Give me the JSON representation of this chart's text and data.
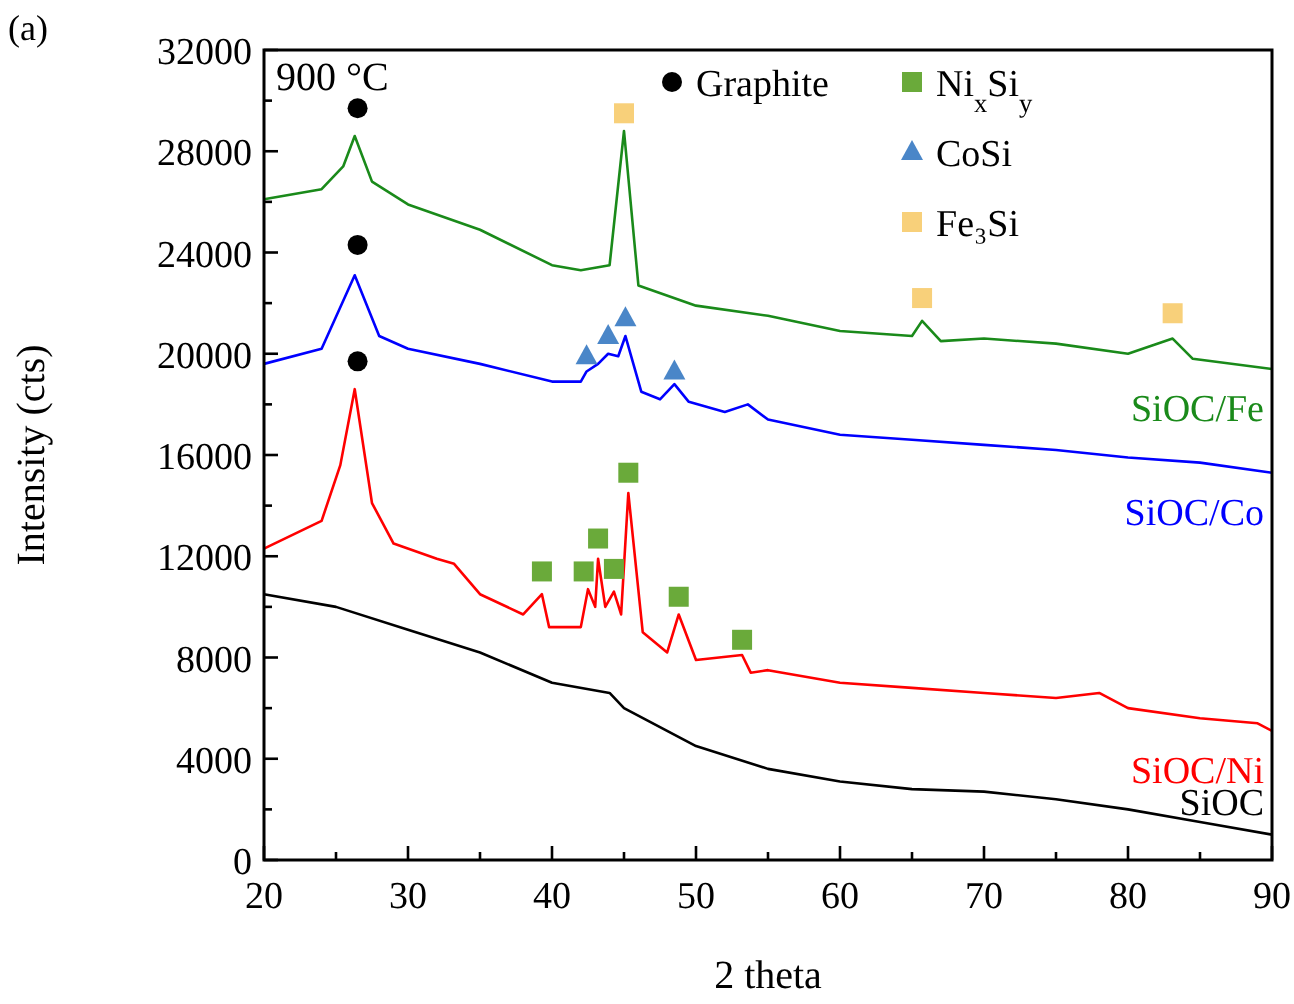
{
  "chart_data": {
    "type": "line",
    "xlabel": "2 theta",
    "ylabel": "Intensity (cts)",
    "annotations": [
      "(a)",
      "900 °C"
    ],
    "xlim": [
      20,
      90
    ],
    "xticks": [
      20,
      {
        "value": 25,
        "label": null
      },
      30,
      {
        "value": 35,
        "label": null
      },
      40,
      {
        "value": 45,
        "label": null
      },
      50,
      {
        "value": 55,
        "label": null
      },
      60,
      {
        "value": 65,
        "label": null
      },
      70,
      {
        "value": 75,
        "label": null
      },
      80,
      {
        "value": 85,
        "label": null
      },
      90
    ],
    "ylim": [
      0,
      32000
    ],
    "yticks": [
      0,
      {
        "value": 2000,
        "label": null
      },
      4000,
      {
        "value": 6000,
        "label": null
      },
      8000,
      {
        "value": 10000,
        "label": null
      },
      12000,
      {
        "value": 14000,
        "label": null
      },
      16000,
      {
        "value": 18000,
        "label": null
      },
      20000,
      {
        "value": 22000,
        "label": null
      },
      24000,
      {
        "value": 26000,
        "label": null
      },
      28000,
      {
        "value": 30000,
        "label": null
      },
      32000
    ],
    "grid": false,
    "legend": "top right",
    "line_style": "solid",
    "series": [
      {
        "name": "SiOC/Fe",
        "color": "#1a8a1a",
        "marker": "none",
        "x": [
          20,
          24,
          25.5,
          26.3,
          27.5,
          30,
          35,
          40,
          42,
          44,
          45,
          46,
          50,
          55,
          60,
          65,
          65.7,
          67,
          70,
          75,
          80,
          83.1,
          84.5,
          90
        ],
        "values": [
          26100,
          26500,
          27400,
          28600,
          26800,
          25900,
          24900,
          23500,
          23300,
          23500,
          28800,
          22700,
          21900,
          21500,
          20900,
          20700,
          21300,
          20500,
          20600,
          20400,
          20000,
          20600,
          19800,
          19400
        ]
      },
      {
        "name": "SiOC/Co",
        "color": "#0000ff",
        "marker": "none",
        "x": [
          20,
          24,
          26.3,
          28,
          30,
          35,
          40,
          42,
          42.4,
          43.2,
          43.9,
          44.6,
          45.1,
          46.2,
          47.5,
          48.5,
          49.5,
          52,
          53.6,
          55,
          60,
          65,
          70,
          75,
          80,
          85,
          90
        ],
        "values": [
          19600,
          20200,
          23100,
          20700,
          20200,
          19600,
          18900,
          18900,
          19300,
          19600,
          20000,
          19900,
          20700,
          18500,
          18200,
          18800,
          18100,
          17700,
          18000,
          17400,
          16800,
          16600,
          16400,
          16200,
          15900,
          15700,
          15300
        ]
      },
      {
        "name": "SiOC/Ni",
        "color": "#ff0000",
        "marker": "none",
        "x": [
          20,
          24,
          25.3,
          26.3,
          27.5,
          29,
          32,
          33.2,
          35,
          38,
          39.3,
          39.8,
          42,
          42.5,
          43,
          43.2,
          43.7,
          44.3,
          44.8,
          45.3,
          46.3,
          48,
          48.8,
          50,
          53.2,
          53.8,
          55,
          60,
          65,
          70,
          75,
          78,
          80,
          85,
          89,
          90
        ],
        "values": [
          12300,
          13400,
          15600,
          18600,
          14100,
          12500,
          11900,
          11700,
          10500,
          9700,
          10500,
          9200,
          9200,
          10700,
          10000,
          11900,
          10000,
          10600,
          9700,
          14500,
          9000,
          8200,
          9700,
          7900,
          8100,
          7400,
          7500,
          7000,
          6800,
          6600,
          6400,
          6600,
          6000,
          5600,
          5400,
          5100
        ]
      },
      {
        "name": "SiOC",
        "color": "#000000",
        "marker": "none",
        "x": [
          20,
          25,
          30,
          35,
          40,
          44,
          45,
          50,
          55,
          60,
          65,
          70,
          75,
          80,
          85,
          90
        ],
        "values": [
          10500,
          10000,
          9100,
          8200,
          7000,
          6600,
          6000,
          4500,
          3600,
          3100,
          2800,
          2700,
          2400,
          2000,
          1500,
          1000
        ]
      },
      {
        "name": "Graphite",
        "type": "scatter",
        "color": "#000000",
        "marker": "circle",
        "x": [
          26.5,
          26.5,
          26.5
        ],
        "values": [
          29700,
          24300,
          19700
        ]
      },
      {
        "name": "Ni$_{x}$Si$_{y}$",
        "type": "scatter",
        "color": "#6aaa3a",
        "marker": "square",
        "x": [
          39.3,
          42.2,
          43.2,
          44.3,
          45.3,
          48.8,
          53.2
        ],
        "values": [
          11400,
          11400,
          12700,
          11500,
          15300,
          10400,
          8700
        ]
      },
      {
        "name": "CoSi",
        "type": "scatter",
        "color": "#4a86c8",
        "marker": "triangle",
        "x": [
          42.4,
          43.9,
          45.1,
          48.5
        ],
        "values": [
          19900,
          20700,
          21400,
          19300
        ]
      },
      {
        "name": "Fe₃Si",
        "type": "scatter",
        "color": "#f8d07a",
        "marker": "square",
        "x": [
          45,
          65.7,
          83.1
        ],
        "values": [
          29500,
          22200,
          21600
        ]
      }
    ]
  }
}
